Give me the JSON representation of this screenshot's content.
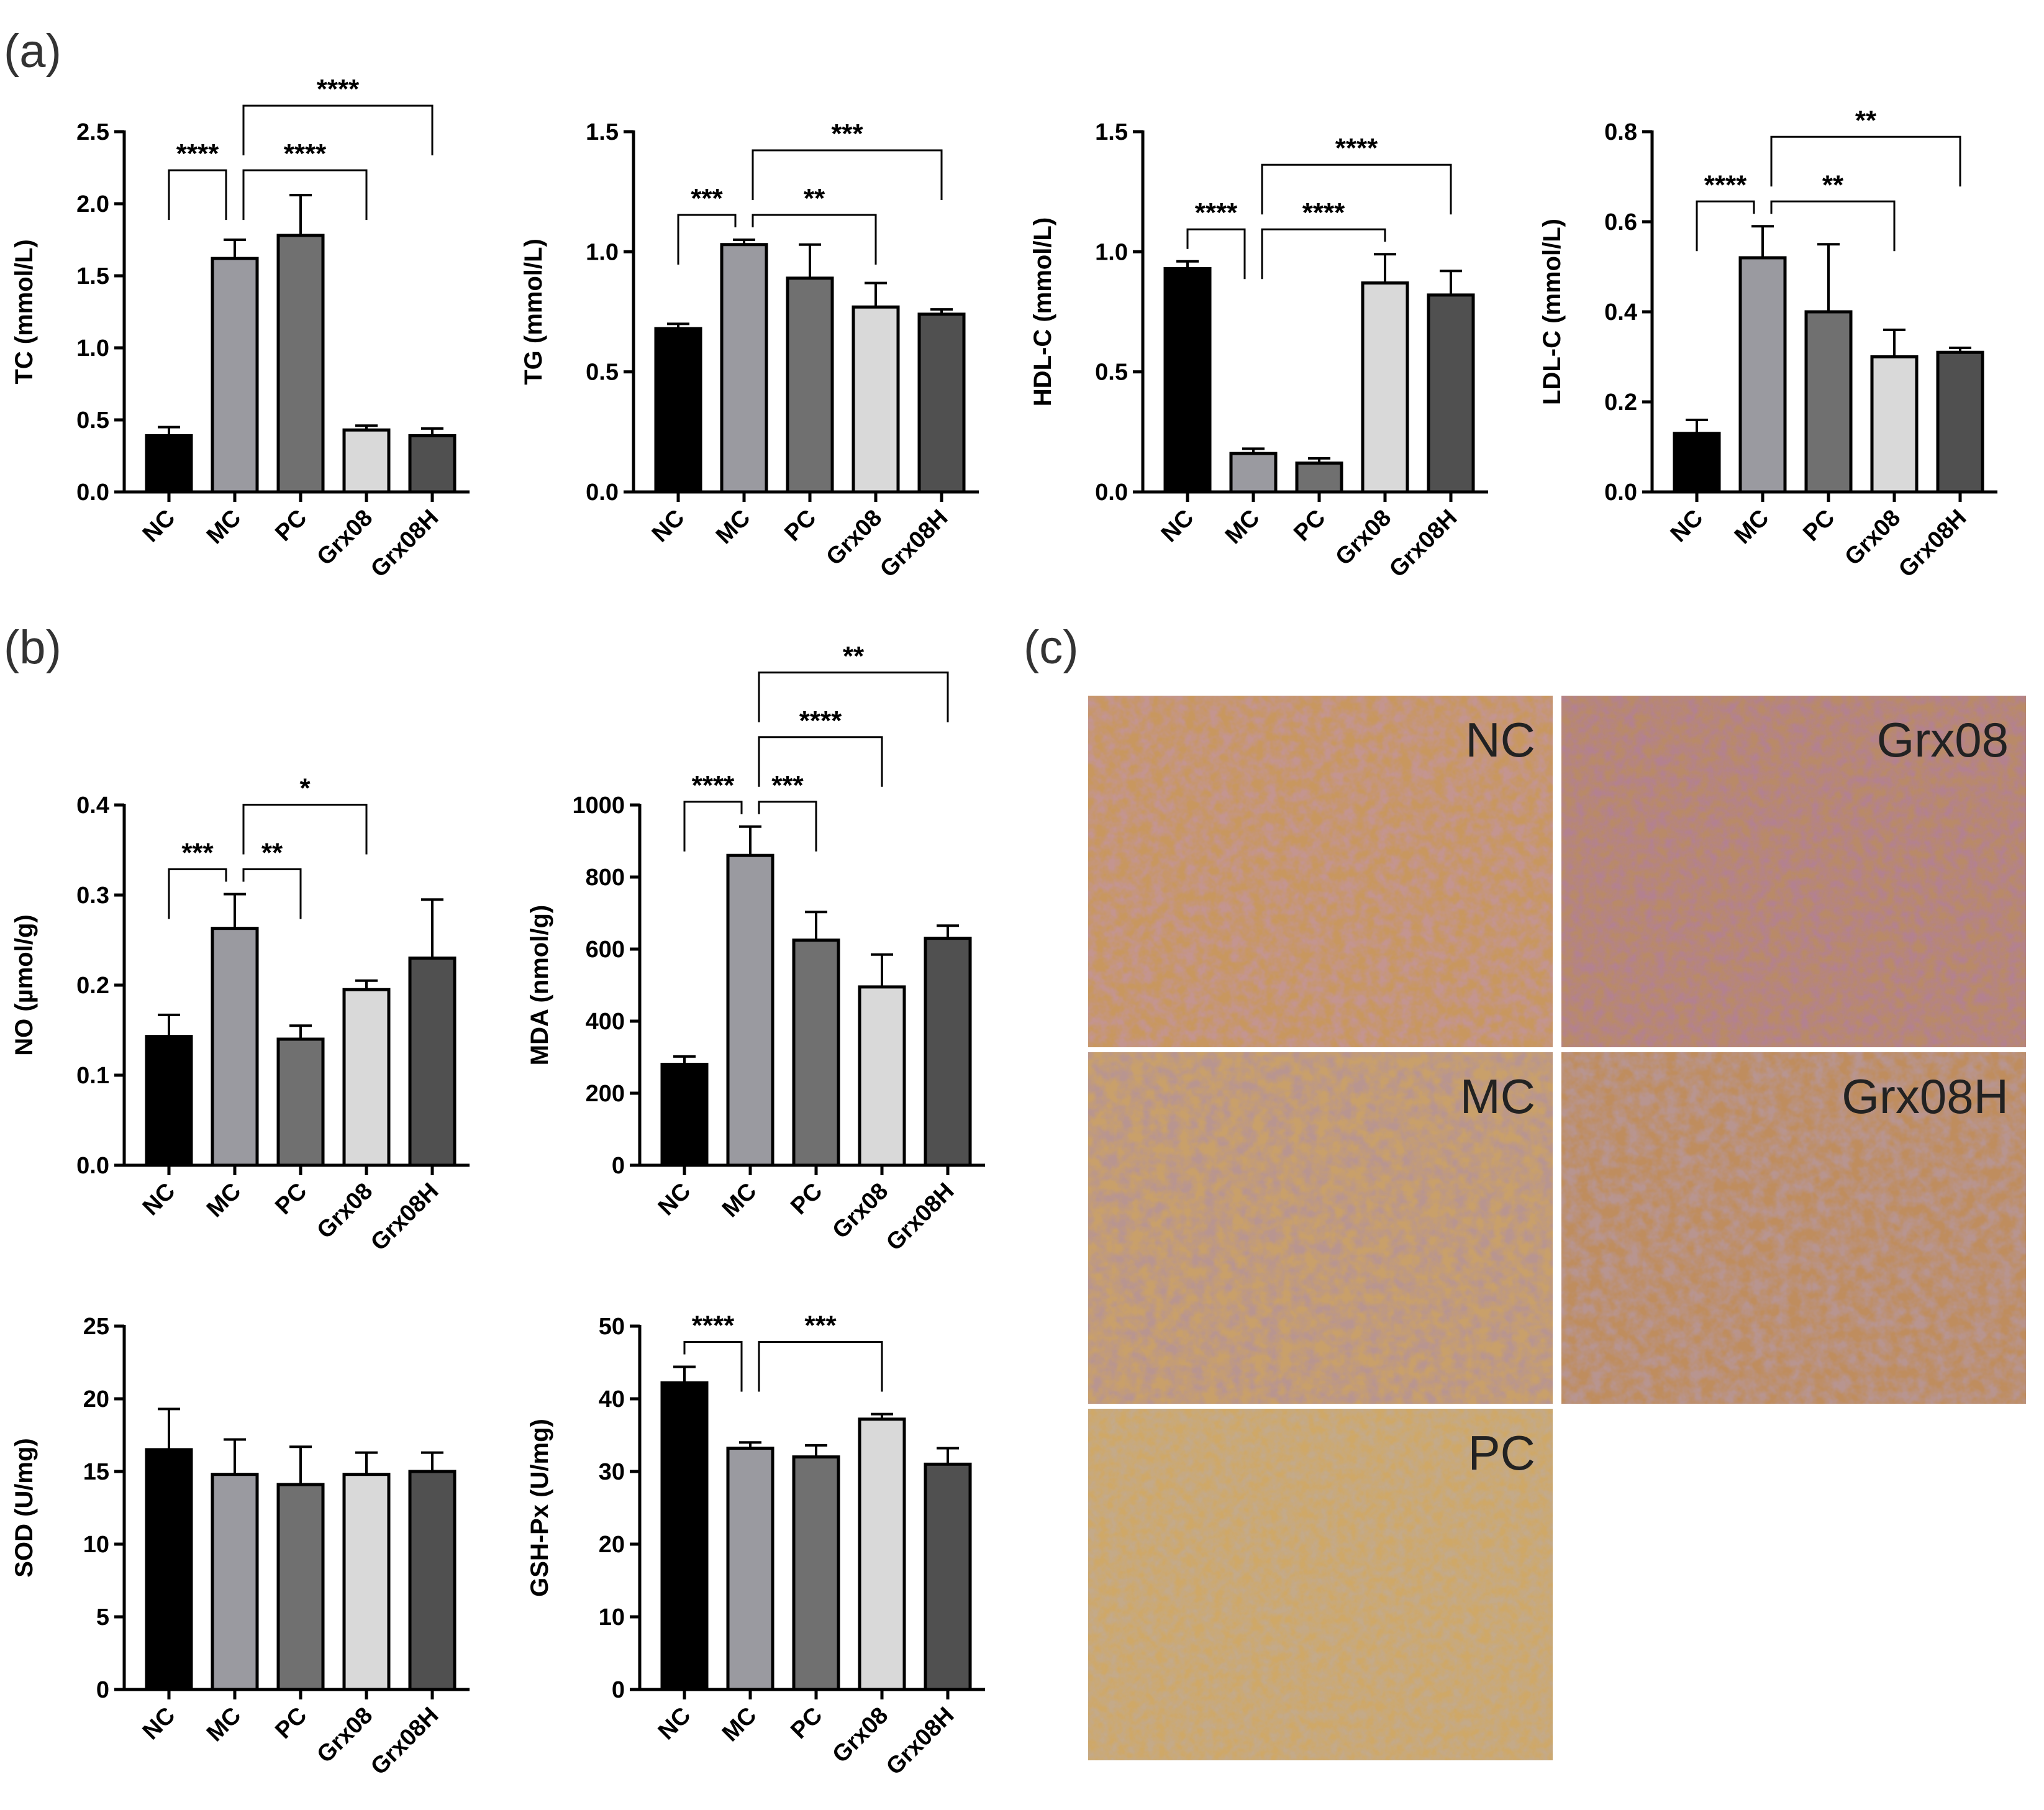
{
  "panel_labels": [
    "(a)",
    "(b)",
    "(c)"
  ],
  "colors": {
    "NC": "#000000",
    "MC": "#9a9aa0",
    "PC": "#707070",
    "Grx08": "#d9d9d9",
    "Grx08H": "#505050"
  },
  "chart_data": [
    {
      "type": "bar",
      "id": "tc",
      "categories": [
        "NC",
        "MC",
        "PC",
        "Grx08",
        "Grx08H"
      ],
      "values": [
        0.39,
        1.62,
        1.78,
        0.43,
        0.39
      ],
      "errors": [
        0.06,
        0.13,
        0.28,
        0.03,
        0.05
      ],
      "ylabel": "TC (mmol/L)",
      "ylim": [
        0,
        2.5
      ],
      "yticks": [
        0,
        0.5,
        1.0,
        1.5,
        2.0,
        2.5
      ],
      "ytick_labels": [
        "0.0",
        "0.5",
        "1.0",
        "1.5",
        "2.0",
        "2.5"
      ],
      "significance": [
        {
          "from": 0,
          "to": 1,
          "label": "****"
        },
        {
          "from": 1,
          "to": 3,
          "label": "****"
        },
        {
          "from": 1,
          "to": 4,
          "label": "****"
        }
      ]
    },
    {
      "type": "bar",
      "id": "tg",
      "categories": [
        "NC",
        "MC",
        "PC",
        "Grx08",
        "Grx08H"
      ],
      "values": [
        0.68,
        1.03,
        0.89,
        0.77,
        0.74
      ],
      "errors": [
        0.02,
        0.02,
        0.14,
        0.1,
        0.02
      ],
      "ylabel": "TG (mmol/L)",
      "ylim": [
        0,
        1.5
      ],
      "yticks": [
        0,
        0.5,
        1.0,
        1.5
      ],
      "ytick_labels": [
        "0.0",
        "0.5",
        "1.0",
        "1.5"
      ],
      "significance": [
        {
          "from": 0,
          "to": 1,
          "label": "***"
        },
        {
          "from": 1,
          "to": 3,
          "label": "**"
        },
        {
          "from": 1,
          "to": 4,
          "label": "***"
        }
      ]
    },
    {
      "type": "bar",
      "id": "hdl",
      "categories": [
        "NC",
        "MC",
        "PC",
        "Grx08",
        "Grx08H"
      ],
      "values": [
        0.93,
        0.16,
        0.12,
        0.87,
        0.82
      ],
      "errors": [
        0.03,
        0.02,
        0.02,
        0.12,
        0.1
      ],
      "ylabel": "HDL-C (mmol/L)",
      "ylim": [
        0,
        1.5
      ],
      "yticks": [
        0,
        0.5,
        1.0,
        1.5
      ],
      "ytick_labels": [
        "0.0",
        "0.5",
        "1.0",
        "1.5"
      ],
      "significance": [
        {
          "from": 0,
          "to": 1,
          "label": "****"
        },
        {
          "from": 1,
          "to": 3,
          "label": "****"
        },
        {
          "from": 1,
          "to": 4,
          "label": "****"
        }
      ]
    },
    {
      "type": "bar",
      "id": "ldl",
      "categories": [
        "NC",
        "MC",
        "PC",
        "Grx08",
        "Grx08H"
      ],
      "values": [
        0.13,
        0.52,
        0.4,
        0.3,
        0.31
      ],
      "errors": [
        0.03,
        0.07,
        0.15,
        0.06,
        0.01
      ],
      "ylabel": "LDL-C (mmol/L)",
      "ylim": [
        0,
        0.8
      ],
      "yticks": [
        0,
        0.2,
        0.4,
        0.6,
        0.8
      ],
      "ytick_labels": [
        "0.0",
        "0.2",
        "0.4",
        "0.6",
        "0.8"
      ],
      "significance": [
        {
          "from": 0,
          "to": 1,
          "label": "****"
        },
        {
          "from": 1,
          "to": 3,
          "label": "**"
        },
        {
          "from": 1,
          "to": 4,
          "label": "**"
        }
      ]
    },
    {
      "type": "bar",
      "id": "no",
      "categories": [
        "NC",
        "MC",
        "PC",
        "Grx08",
        "Grx08H"
      ],
      "values": [
        0.143,
        0.263,
        0.14,
        0.195,
        0.23
      ],
      "errors": [
        0.024,
        0.038,
        0.015,
        0.01,
        0.065
      ],
      "ylabel": "NO (µmol/g)",
      "ylim": [
        0,
        0.4
      ],
      "yticks": [
        0,
        0.1,
        0.2,
        0.3,
        0.4
      ],
      "ytick_labels": [
        "0.0",
        "0.1",
        "0.2",
        "0.3",
        "0.4"
      ],
      "significance": [
        {
          "from": 0,
          "to": 1,
          "label": "***"
        },
        {
          "from": 1,
          "to": 2,
          "label": "**"
        },
        {
          "from": 1,
          "to": 3,
          "label": "*"
        }
      ]
    },
    {
      "type": "bar",
      "id": "mda",
      "categories": [
        "NC",
        "MC",
        "PC",
        "Grx08",
        "Grx08H"
      ],
      "values": [
        280,
        860,
        625,
        495,
        630
      ],
      "errors": [
        22,
        80,
        78,
        90,
        35
      ],
      "ylabel": "MDA (nmol/g)",
      "ylim": [
        0,
        1000
      ],
      "yticks": [
        0,
        200,
        400,
        600,
        800,
        1000
      ],
      "ytick_labels": [
        "0",
        "200",
        "400",
        "600",
        "800",
        "1000"
      ],
      "significance": [
        {
          "from": 0,
          "to": 1,
          "label": "****"
        },
        {
          "from": 1,
          "to": 3,
          "label": "****"
        },
        {
          "from": 1,
          "to": 2,
          "label": "***"
        },
        {
          "from": 1,
          "to": 4,
          "label": "**"
        }
      ]
    },
    {
      "type": "bar",
      "id": "sod",
      "categories": [
        "NC",
        "MC",
        "PC",
        "Grx08",
        "Grx08H"
      ],
      "values": [
        16.5,
        14.8,
        14.1,
        14.8,
        15.0
      ],
      "errors": [
        2.8,
        2.4,
        2.6,
        1.5,
        1.3
      ],
      "ylabel": "SOD (U/mg)",
      "ylim": [
        0,
        25
      ],
      "yticks": [
        0,
        5,
        10,
        15,
        20,
        25
      ],
      "ytick_labels": [
        "0",
        "5",
        "10",
        "15",
        "20",
        "25"
      ],
      "significance": []
    },
    {
      "type": "bar",
      "id": "gsh",
      "categories": [
        "NC",
        "MC",
        "PC",
        "Grx08",
        "Grx08H"
      ],
      "values": [
        42.2,
        33.2,
        32.0,
        37.2,
        31.0
      ],
      "errors": [
        2.2,
        0.8,
        1.6,
        0.7,
        2.2
      ],
      "ylabel": "GSH-Px (U/mg)",
      "ylim": [
        0,
        50
      ],
      "yticks": [
        0,
        10,
        20,
        30,
        40,
        50
      ],
      "ytick_labels": [
        "0",
        "10",
        "20",
        "30",
        "40",
        "50"
      ],
      "significance": [
        {
          "from": 0,
          "to": 1,
          "label": "****"
        },
        {
          "from": 1,
          "to": 3,
          "label": "***"
        }
      ]
    }
  ],
  "histology": [
    {
      "label": "NC"
    },
    {
      "label": "Grx08"
    },
    {
      "label": "MC"
    },
    {
      "label": "Grx08H"
    },
    {
      "label": "PC"
    }
  ]
}
